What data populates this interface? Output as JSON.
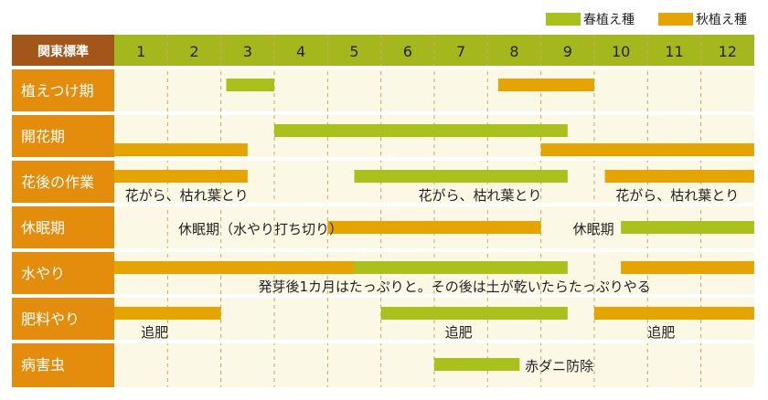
{
  "colors": {
    "spring": "#a9c11a",
    "autumn": "#e5a400",
    "header_bg": "#a4b81e",
    "header_label_bg": "#a3561a",
    "row_label_bg": "#e48d0c",
    "body_bg": "#fcf8e6",
    "grid_line": "#c9a96a",
    "row_separator": "#ffffff",
    "text_dark": "#222222",
    "text_light": "#ffffff"
  },
  "legend": {
    "spring_label": "春植え種",
    "autumn_label": "秋植え種"
  },
  "chart_data": {
    "type": "gantt",
    "header_label": "関東標準",
    "months": [
      "1",
      "2",
      "3",
      "4",
      "5",
      "6",
      "7",
      "8",
      "9",
      "10",
      "11",
      "12"
    ],
    "rows": [
      {
        "label": "植えつけ期",
        "bars": [
          {
            "series": "spring",
            "start": 3.1,
            "end": 4.0,
            "lane": "top"
          },
          {
            "series": "autumn",
            "start": 8.2,
            "end": 10.0,
            "lane": "top"
          }
        ],
        "notes": []
      },
      {
        "label": "開花期",
        "bars": [
          {
            "series": "spring",
            "start": 4.0,
            "end": 9.5,
            "lane": "top"
          },
          {
            "series": "autumn",
            "start": 1.0,
            "end": 3.5,
            "lane": "bottom"
          },
          {
            "series": "autumn",
            "start": 9.0,
            "end": 13.0,
            "lane": "bottom"
          }
        ],
        "notes": []
      },
      {
        "label": "花後の作業",
        "bars": [
          {
            "series": "autumn",
            "start": 1.0,
            "end": 3.5,
            "lane": "top"
          },
          {
            "series": "spring",
            "start": 5.5,
            "end": 9.5,
            "lane": "top"
          },
          {
            "series": "autumn",
            "start": 10.2,
            "end": 13.0,
            "lane": "top"
          }
        ],
        "notes": [
          {
            "text": "花がら、枯れ葉とり",
            "month": 1.2
          },
          {
            "text": "花がら、枯れ葉とり",
            "month": 6.7
          },
          {
            "text": "花がら、枯れ葉とり",
            "month": 10.4
          }
        ]
      },
      {
        "label": "休眠期",
        "bars": [
          {
            "series": "autumn",
            "start": 5.0,
            "end": 9.0,
            "lane": "mid"
          },
          {
            "series": "spring",
            "start": 10.5,
            "end": 13.0,
            "lane": "mid"
          }
        ],
        "notes": [
          {
            "text": "休眠期（水やり打ち切り）",
            "month": 2.2
          },
          {
            "text": "休眠期",
            "month": 9.6
          }
        ]
      },
      {
        "label": "水やり",
        "bars": [
          {
            "series": "autumn",
            "start": 1.0,
            "end": 5.5,
            "lane": "top"
          },
          {
            "series": "spring",
            "start": 5.5,
            "end": 9.5,
            "lane": "top"
          },
          {
            "series": "autumn",
            "start": 10.5,
            "end": 13.0,
            "lane": "top"
          }
        ],
        "notes": [
          {
            "text": "発芽後1カ月はたっぷりと。その後は土が乾いたらたっぷりやる",
            "month": 3.7
          }
        ]
      },
      {
        "label": "肥料やり",
        "bars": [
          {
            "series": "autumn",
            "start": 1.0,
            "end": 3.0,
            "lane": "top"
          },
          {
            "series": "spring",
            "start": 6.0,
            "end": 9.5,
            "lane": "top"
          },
          {
            "series": "autumn",
            "start": 10.0,
            "end": 13.0,
            "lane": "top"
          }
        ],
        "notes": [
          {
            "text": "追肥",
            "month": 1.5
          },
          {
            "text": "追肥",
            "month": 7.2
          },
          {
            "text": "追肥",
            "month": 11.0
          }
        ]
      },
      {
        "label": "病害虫",
        "bars": [
          {
            "series": "spring",
            "start": 7.0,
            "end": 8.6,
            "lane": "mid"
          }
        ],
        "notes": [
          {
            "text": "赤ダニ防除",
            "month": 8.7
          }
        ]
      }
    ]
  }
}
